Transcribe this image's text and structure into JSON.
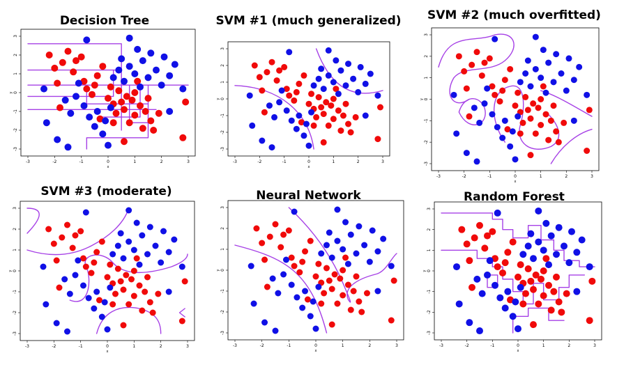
{
  "colors": {
    "class_red": "#f00a0a",
    "class_blue": "#1010e6",
    "boundary": "#a640e6"
  },
  "chart_data": [
    {
      "type": "scatter",
      "title": "Decision Tree",
      "xlabel": "x",
      "ylabel": "y",
      "xlim": [
        -3,
        3
      ],
      "ylim": [
        -3,
        3
      ],
      "xticks": [
        "-3",
        "-2",
        "-1",
        "0",
        "1",
        "2",
        "3"
      ],
      "yticks": [
        "-3",
        "-2",
        "-1",
        "0",
        "1",
        "2",
        "3"
      ]
    },
    {
      "type": "scatter",
      "title": "SVM #1 (much generalized)",
      "xlabel": "x",
      "ylabel": "y",
      "xlim": [
        -3,
        3
      ],
      "ylim": [
        -3,
        3
      ],
      "xticks": [
        "-3",
        "-2",
        "-1",
        "0",
        "1",
        "2",
        "3"
      ],
      "yticks": [
        "-3",
        "-2",
        "-1",
        "0",
        "1",
        "2",
        "3"
      ]
    },
    {
      "type": "scatter",
      "title": "SVM #2 (much overfitted)",
      "xlabel": "x",
      "ylabel": "y",
      "xlim": [
        -3,
        3
      ],
      "ylim": [
        -3,
        3
      ],
      "xticks": [
        "-3",
        "-2",
        "-1",
        "0",
        "1",
        "2",
        "3"
      ],
      "yticks": [
        "-3",
        "-2",
        "-1",
        "0",
        "1",
        "2",
        "3"
      ]
    },
    {
      "type": "scatter",
      "title": "SVM #3 (moderate)",
      "xlabel": "x",
      "ylabel": "y",
      "xlim": [
        -3,
        3
      ],
      "ylim": [
        -3,
        3
      ],
      "xticks": [
        "-3",
        "-2",
        "-1",
        "0",
        "1",
        "2",
        "3"
      ],
      "yticks": [
        "-3",
        "-2",
        "-1",
        "0",
        "1",
        "2",
        "3"
      ]
    },
    {
      "type": "scatter",
      "title": "Neural Network",
      "xlabel": "x",
      "ylabel": "y",
      "xlim": [
        -3,
        3
      ],
      "ylim": [
        -3,
        3
      ],
      "xticks": [
        "-3",
        "-2",
        "-1",
        "0",
        "1",
        "2",
        "3"
      ],
      "yticks": [
        "-3",
        "-2",
        "-1",
        "0",
        "1",
        "2",
        "3"
      ]
    },
    {
      "type": "scatter",
      "title": "Random Forest",
      "xlabel": "x",
      "ylabel": "y",
      "xlim": [
        -3,
        3
      ],
      "ylim": [
        -3,
        3
      ],
      "xticks": [
        "-3",
        "-2",
        "-1",
        "0",
        "1",
        "2",
        "3"
      ],
      "yticks": [
        "-3",
        "-2",
        "-1",
        "0",
        "1",
        "2",
        "3"
      ]
    }
  ],
  "scatter_points": {
    "red": [
      [
        -2.2,
        2.0
      ],
      [
        -2.0,
        1.3
      ],
      [
        -1.9,
        0.5
      ],
      [
        -1.7,
        1.6
      ],
      [
        -1.5,
        2.2
      ],
      [
        -1.3,
        1.1
      ],
      [
        -1.2,
        1.7
      ],
      [
        -1.0,
        1.9
      ],
      [
        -0.9,
        0.6
      ],
      [
        -0.8,
        0.2
      ],
      [
        -0.6,
        -0.1
      ],
      [
        -0.4,
        0.9
      ],
      [
        -0.2,
        1.4
      ],
      [
        0.0,
        -0.3
      ],
      [
        0.1,
        0.3
      ],
      [
        0.2,
        -0.6
      ],
      [
        0.3,
        -1.1
      ],
      [
        0.4,
        0.1
      ],
      [
        0.5,
        -0.5
      ],
      [
        0.6,
        -0.9
      ],
      [
        0.7,
        -0.2
      ],
      [
        0.8,
        -1.6
      ],
      [
        0.9,
        -0.4
      ],
      [
        1.0,
        -1.2
      ],
      [
        1.1,
        0.6
      ],
      [
        1.2,
        -0.7
      ],
      [
        1.3,
        -1.9
      ],
      [
        1.4,
        -1.0
      ],
      [
        1.5,
        -0.3
      ],
      [
        1.6,
        -1.5
      ],
      [
        1.7,
        -2.0
      ],
      [
        1.9,
        -1.1
      ],
      [
        0.6,
        -2.6
      ],
      [
        -0.3,
        -1.4
      ],
      [
        2.9,
        -0.5
      ],
      [
        2.8,
        -2.4
      ],
      [
        -1.8,
        -0.8
      ],
      [
        0.2,
        -1.6
      ],
      [
        -0.5,
        0.4
      ],
      [
        1.0,
        0.0
      ]
    ],
    "blue": [
      [
        -1.6,
        -0.4
      ],
      [
        -1.4,
        -1.1
      ],
      [
        -1.2,
        -0.2
      ],
      [
        -1.1,
        0.5
      ],
      [
        -0.9,
        -0.7
      ],
      [
        -0.7,
        -1.3
      ],
      [
        -0.5,
        -1.8
      ],
      [
        -0.4,
        -1.0
      ],
      [
        -0.2,
        -2.2
      ],
      [
        -0.1,
        -1.5
      ],
      [
        0.1,
        -0.8
      ],
      [
        0.2,
        0.8
      ],
      [
        0.4,
        1.2
      ],
      [
        0.5,
        1.8
      ],
      [
        0.6,
        0.6
      ],
      [
        0.8,
        1.4
      ],
      [
        1.0,
        1.0
      ],
      [
        1.1,
        2.3
      ],
      [
        1.2,
        0.3
      ],
      [
        1.3,
        1.7
      ],
      [
        1.5,
        0.8
      ],
      [
        1.6,
        2.1
      ],
      [
        1.8,
        1.2
      ],
      [
        2.0,
        0.4
      ],
      [
        2.1,
        1.9
      ],
      [
        2.3,
        0.9
      ],
      [
        2.5,
        1.5
      ],
      [
        2.8,
        0.2
      ],
      [
        -2.3,
        -1.6
      ],
      [
        -1.9,
        -2.5
      ],
      [
        -1.5,
        -2.9
      ],
      [
        -0.8,
        2.8
      ],
      [
        0.8,
        2.9
      ],
      [
        0.0,
        -2.8
      ],
      [
        2.3,
        -1.0
      ],
      [
        -2.4,
        0.2
      ]
    ]
  }
}
